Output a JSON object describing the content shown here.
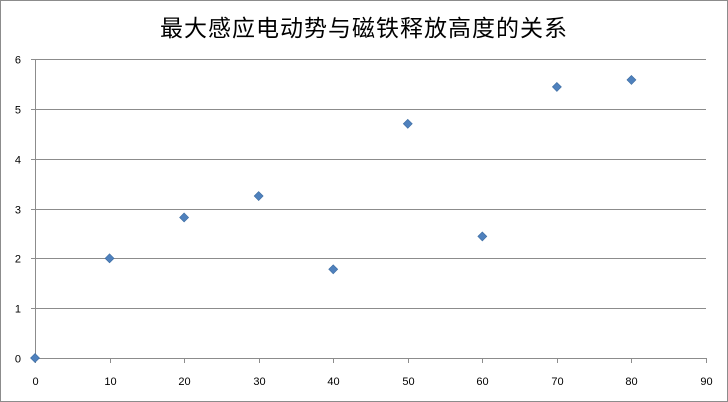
{
  "chart_data": {
    "type": "scatter",
    "title": "最大感应电动势与磁铁释放高度的关系",
    "xlabel": "",
    "ylabel": "",
    "xlim": [
      0,
      90
    ],
    "ylim": [
      0,
      6
    ],
    "xticks": [
      0,
      10,
      20,
      30,
      40,
      50,
      60,
      70,
      80,
      90
    ],
    "yticks": [
      0,
      1,
      2,
      3,
      4,
      5,
      6
    ],
    "grid": "horizontal",
    "legend": "none",
    "marker": "diamond",
    "marker_color": "#4f81bd",
    "points": [
      {
        "x": 0,
        "y": 0
      },
      {
        "x": 10,
        "y": 2.0
      },
      {
        "x": 20,
        "y": 2.82
      },
      {
        "x": 30,
        "y": 3.25
      },
      {
        "x": 40,
        "y": 1.78
      },
      {
        "x": 50,
        "y": 4.7
      },
      {
        "x": 60,
        "y": 2.44
      },
      {
        "x": 70,
        "y": 5.44
      },
      {
        "x": 80,
        "y": 5.58
      }
    ]
  }
}
